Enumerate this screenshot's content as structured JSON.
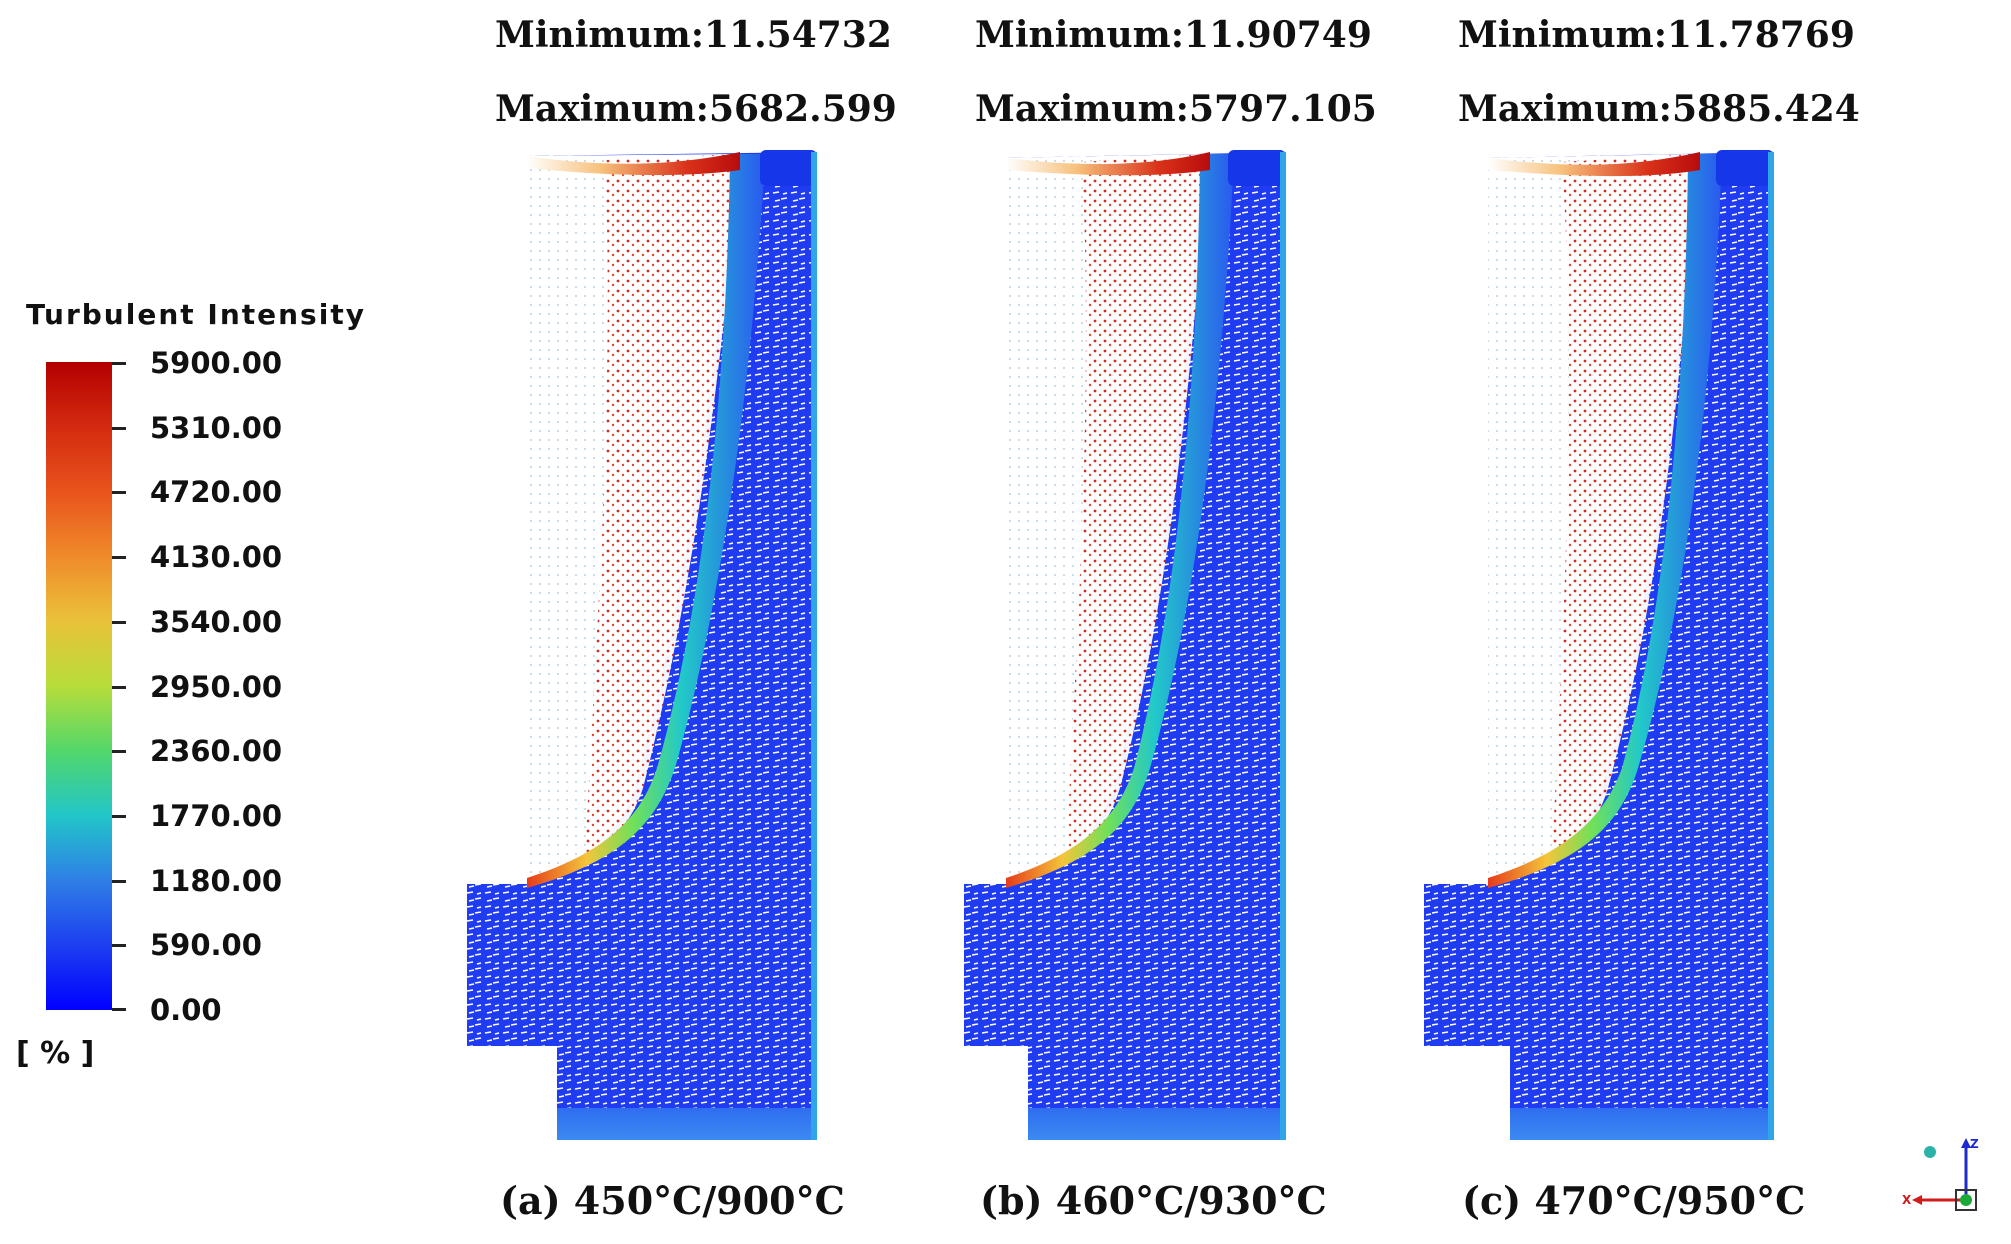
{
  "legend": {
    "title": "Turbulent Intensity",
    "unit": "[ % ]",
    "ticks": [
      "5900.00",
      "5310.00",
      "4720.00",
      "4130.00",
      "3540.00",
      "2950.00",
      "2360.00",
      "1770.00",
      "1180.00",
      "590.00",
      "0.00"
    ]
  },
  "panels": [
    {
      "minimum": "Minimum:11.54732",
      "maximum": "Maximum:5682.599",
      "caption": "(a) 450°C/900°C"
    },
    {
      "minimum": "Minimum:11.90749",
      "maximum": "Maximum:5797.105",
      "caption": "(b) 460°C/930°C"
    },
    {
      "minimum": "Minimum:11.78769",
      "maximum": "Maximum:5885.424",
      "caption": "(c) 470°C/950°C"
    }
  ],
  "axis_triad": {
    "z_label": "Z",
    "x_label": "X"
  }
}
